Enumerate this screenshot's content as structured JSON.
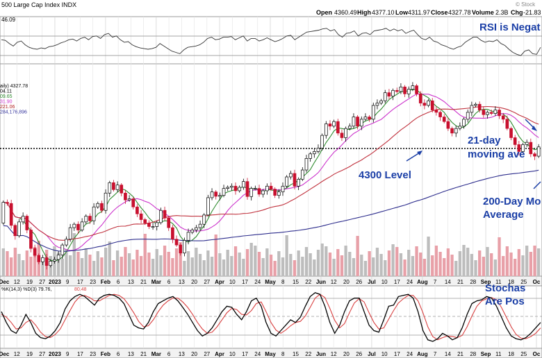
{
  "header": {
    "symbol": "500 Large Cap Index  INDX",
    "open_label": "Open",
    "open": "4360.49",
    "high_label": "High",
    "high": "4377.10",
    "low_label": "Low",
    "low": "4311.97",
    "close_label": "Close",
    "close": "4327.78",
    "volume_label": "Volume",
    "volume": "2.3B",
    "chg_label": "Chg",
    "chg": "-21.83",
    "watermark": "© Stock"
  },
  "rsi_panel": {
    "value": "46.09"
  },
  "price_panel": {
    "legend": [
      "aily) 4327.78",
      "04.11",
      "09.65",
      "31.90",
      "221.06",
      "284,176,896"
    ],
    "legend_colors": [
      "#000000",
      "#000000",
      "#2e8b2e",
      "#cc33cc",
      "#b22222",
      "#3a3aa0"
    ]
  },
  "stoch_panel": {
    "label": "%K(14,3) %D(3) 79.76,",
    "value": "80.48"
  },
  "annotations": {
    "rsi": "RSI is Negat",
    "ma21_line1": "21-day",
    "ma21_line2": "moving ave",
    "level": "4300 Level",
    "ma200_line1": "200-Day Mo",
    "ma200_line2": "Average",
    "stoch_line1": "Stochas",
    "stoch_line2": "Are Pos"
  },
  "colors": {
    "annotation": "#1a3ea6",
    "ma_fast": "#2e8b2e",
    "ma_21": "#cc33cc",
    "ma_50": "#c0303c",
    "ma_200": "#2c2c8c",
    "up_candle": "#000000",
    "down_candle": "#c8102e",
    "stoch_k": "#000000",
    "stoch_d": "#d94040"
  },
  "chart_data": {
    "type": "candlestick",
    "y_ticks_level": 4300,
    "ylim": [
      3760,
      4620
    ],
    "x_labels": [
      "Dec",
      "12",
      "19",
      "27",
      "2023",
      "9",
      "17",
      "23",
      "Feb",
      "6",
      "13",
      "21",
      "Mar",
      "6",
      "13",
      "20",
      "27",
      "Apr",
      "10",
      "17",
      "24",
      "May",
      "8",
      "15",
      "22",
      "Jun",
      "12",
      "20",
      "26",
      "Jul",
      "10",
      "17",
      "24",
      "Aug",
      "7",
      "14",
      "21",
      "28",
      "Sep",
      "11",
      "18",
      "25",
      "Oc"
    ],
    "x_label_bold": [
      "Dec",
      "2023",
      "Feb",
      "Mar",
      "Apr",
      "May",
      "Jun",
      "Jul",
      "Aug",
      "Sep",
      "Oc"
    ],
    "price_series": [
      [
        3990,
        4080
      ],
      [
        4080,
        4075
      ],
      [
        4075,
        3980
      ],
      [
        3980,
        3935
      ],
      [
        3935,
        3995
      ],
      [
        3995,
        4020
      ],
      [
        4020,
        3960
      ],
      [
        3960,
        3880
      ],
      [
        3880,
        3850
      ],
      [
        3850,
        3822
      ],
      [
        3822,
        3840
      ],
      [
        3840,
        3806
      ],
      [
        3806,
        3825
      ],
      [
        3825,
        3832
      ],
      [
        3832,
        3852
      ],
      [
        3852,
        3895
      ],
      [
        3895,
        3920
      ],
      [
        3920,
        3970
      ],
      [
        3970,
        3985
      ],
      [
        3985,
        3960
      ],
      [
        3960,
        3995
      ],
      [
        3995,
        4020
      ],
      [
        4020,
        4000
      ],
      [
        4000,
        4060
      ],
      [
        4060,
        4075
      ],
      [
        4075,
        4045
      ],
      [
        4045,
        4120
      ],
      [
        4120,
        4165
      ],
      [
        4165,
        4135
      ],
      [
        4135,
        4155
      ],
      [
        4155,
        4120
      ],
      [
        4120,
        4090
      ],
      [
        4090,
        4095
      ],
      [
        4095,
        4060
      ],
      [
        4060,
        4030
      ],
      [
        4030,
        4005
      ],
      [
        4005,
        3990
      ],
      [
        3990,
        3975
      ],
      [
        3975,
        3975
      ],
      [
        3975,
        3992
      ],
      [
        3992,
        4045
      ],
      [
        4045,
        4012
      ],
      [
        4012,
        3970
      ],
      [
        3970,
        3920
      ],
      [
        3920,
        3895
      ],
      [
        3895,
        3860
      ],
      [
        3860,
        3915
      ],
      [
        3915,
        3950
      ],
      [
        3950,
        3960
      ],
      [
        3960,
        3970
      ],
      [
        3970,
        3985
      ],
      [
        3985,
        4025
      ],
      [
        4025,
        4100
      ],
      [
        4100,
        4125
      ],
      [
        4125,
        4106
      ],
      [
        4106,
        4110
      ],
      [
        4110,
        4140
      ],
      [
        4140,
        4145
      ],
      [
        4145,
        4150
      ],
      [
        4150,
        4130
      ],
      [
        4130,
        4145
      ],
      [
        4145,
        4170
      ],
      [
        4170,
        4105
      ],
      [
        4105,
        4140
      ],
      [
        4140,
        4140
      ],
      [
        4140,
        4115
      ],
      [
        4115,
        4130
      ],
      [
        4130,
        4150
      ],
      [
        4150,
        4137
      ],
      [
        4137,
        4110
      ],
      [
        4110,
        4125
      ],
      [
        4125,
        4150
      ],
      [
        4150,
        4190
      ],
      [
        4190,
        4205
      ],
      [
        4205,
        4150
      ],
      [
        4150,
        4180
      ],
      [
        4180,
        4220
      ],
      [
        4220,
        4270
      ],
      [
        4270,
        4290
      ],
      [
        4290,
        4300
      ],
      [
        4300,
        4315
      ],
      [
        4315,
        4370
      ],
      [
        4370,
        4420
      ],
      [
        4420,
        4410
      ],
      [
        4410,
        4430
      ],
      [
        4430,
        4380
      ],
      [
        4380,
        4360
      ],
      [
        4360,
        4400
      ],
      [
        4400,
        4410
      ],
      [
        4410,
        4450
      ],
      [
        4450,
        4410
      ],
      [
        4410,
        4440
      ],
      [
        4440,
        4450
      ],
      [
        4450,
        4440
      ],
      [
        4440,
        4500
      ],
      [
        4500,
        4510
      ],
      [
        4510,
        4520
      ],
      [
        4520,
        4555
      ],
      [
        4555,
        4540
      ],
      [
        4540,
        4565
      ],
      [
        4565,
        4560
      ],
      [
        4560,
        4580
      ],
      [
        4580,
        4550
      ],
      [
        4550,
        4570
      ],
      [
        4570,
        4585
      ],
      [
        4585,
        4550
      ],
      [
        4550,
        4510
      ],
      [
        4510,
        4500
      ],
      [
        4500,
        4520
      ],
      [
        4520,
        4480
      ],
      [
        4480,
        4470
      ],
      [
        4470,
        4450
      ],
      [
        4450,
        4430
      ],
      [
        4430,
        4400
      ],
      [
        4400,
        4380
      ],
      [
        4380,
        4400
      ],
      [
        4400,
        4410
      ],
      [
        4410,
        4440
      ],
      [
        4440,
        4470
      ],
      [
        4470,
        4500
      ],
      [
        4500,
        4505
      ],
      [
        4505,
        4480
      ],
      [
        4480,
        4460
      ],
      [
        4460,
        4470
      ],
      [
        4470,
        4465
      ],
      [
        4465,
        4480
      ],
      [
        4480,
        4455
      ],
      [
        4455,
        4440
      ],
      [
        4440,
        4400
      ],
      [
        4400,
        4360
      ],
      [
        4360,
        4330
      ],
      [
        4330,
        4300
      ],
      [
        4300,
        4330
      ],
      [
        4330,
        4340
      ],
      [
        4340,
        4290
      ],
      [
        4290,
        4280
      ],
      [
        4280,
        4320
      ]
    ],
    "stoch_series": [
      [
        60,
        55
      ],
      [
        40,
        50
      ],
      [
        25,
        40
      ],
      [
        20,
        28
      ],
      [
        35,
        30
      ],
      [
        55,
        40
      ],
      [
        40,
        45
      ],
      [
        20,
        35
      ],
      [
        12,
        22
      ],
      [
        10,
        14
      ],
      [
        15,
        12
      ],
      [
        25,
        18
      ],
      [
        40,
        28
      ],
      [
        65,
        45
      ],
      [
        80,
        62
      ],
      [
        88,
        78
      ],
      [
        92,
        88
      ],
      [
        88,
        90
      ],
      [
        80,
        86
      ],
      [
        72,
        80
      ],
      [
        85,
        80
      ],
      [
        90,
        85
      ],
      [
        92,
        90
      ],
      [
        90,
        92
      ],
      [
        85,
        90
      ],
      [
        75,
        84
      ],
      [
        55,
        72
      ],
      [
        35,
        58
      ],
      [
        30,
        42
      ],
      [
        28,
        32
      ],
      [
        40,
        34
      ],
      [
        60,
        45
      ],
      [
        75,
        60
      ],
      [
        80,
        72
      ],
      [
        85,
        80
      ],
      [
        88,
        85
      ],
      [
        80,
        85
      ],
      [
        68,
        78
      ],
      [
        55,
        68
      ],
      [
        40,
        55
      ],
      [
        25,
        40
      ],
      [
        15,
        28
      ],
      [
        20,
        20
      ],
      [
        30,
        22
      ],
      [
        45,
        32
      ],
      [
        60,
        45
      ],
      [
        70,
        58
      ],
      [
        68,
        66
      ],
      [
        55,
        64
      ],
      [
        45,
        55
      ],
      [
        60,
        54
      ],
      [
        80,
        62
      ],
      [
        85,
        75
      ],
      [
        70,
        78
      ],
      [
        40,
        60
      ],
      [
        20,
        40
      ],
      [
        15,
        26
      ],
      [
        25,
        20
      ],
      [
        35,
        26
      ],
      [
        45,
        34
      ],
      [
        40,
        40
      ],
      [
        50,
        42
      ],
      [
        70,
        52
      ],
      [
        88,
        68
      ],
      [
        95,
        85
      ],
      [
        92,
        92
      ],
      [
        70,
        86
      ],
      [
        40,
        66
      ],
      [
        20,
        44
      ],
      [
        35,
        30
      ],
      [
        60,
        38
      ],
      [
        80,
        58
      ],
      [
        85,
        76
      ],
      [
        85,
        84
      ],
      [
        60,
        78
      ],
      [
        35,
        58
      ],
      [
        25,
        40
      ],
      [
        22,
        28
      ],
      [
        45,
        30
      ],
      [
        70,
        46
      ],
      [
        72,
        62
      ],
      [
        88,
        76
      ],
      [
        90,
        84
      ],
      [
        92,
        90
      ],
      [
        85,
        90
      ],
      [
        60,
        80
      ],
      [
        25,
        58
      ],
      [
        8,
        32
      ],
      [
        5,
        14
      ],
      [
        10,
        8
      ],
      [
        20,
        12
      ],
      [
        15,
        15
      ],
      [
        8,
        14
      ],
      [
        12,
        12
      ],
      [
        30,
        16
      ],
      [
        55,
        32
      ],
      [
        75,
        52
      ],
      [
        80,
        70
      ],
      [
        82,
        80
      ],
      [
        88,
        84
      ],
      [
        85,
        86
      ],
      [
        70,
        82
      ],
      [
        50,
        68
      ],
      [
        30,
        50
      ],
      [
        15,
        32
      ],
      [
        10,
        18
      ],
      [
        8,
        11
      ],
      [
        12,
        10
      ],
      [
        20,
        14
      ],
      [
        30,
        20
      ],
      [
        40,
        30
      ]
    ],
    "rsi_series": [
      58,
      57,
      52,
      48,
      54,
      56,
      50,
      46,
      44,
      43,
      45,
      44,
      47,
      48,
      50,
      53,
      55,
      58,
      59,
      56,
      60,
      62,
      58,
      63,
      64,
      60,
      66,
      68,
      62,
      64,
      58,
      54,
      55,
      50,
      47,
      45,
      44,
      43,
      44,
      46,
      52,
      48,
      44,
      40,
      38,
      36,
      42,
      46,
      47,
      48,
      50,
      54,
      60,
      62,
      58,
      59,
      62,
      62,
      63,
      58,
      61,
      64,
      56,
      60,
      60,
      56,
      58,
      61,
      58,
      55,
      57,
      60,
      64,
      65,
      58,
      62,
      66,
      70,
      71,
      72,
      73,
      75,
      76,
      72,
      74,
      66,
      62,
      68,
      69,
      72,
      64,
      68,
      69,
      66,
      72,
      73,
      74,
      76,
      72,
      75,
      72,
      74,
      68,
      71,
      73,
      66,
      60,
      58,
      62,
      56,
      54,
      50,
      48,
      45,
      43,
      46,
      48,
      54,
      58,
      62,
      62,
      57,
      54,
      56,
      55,
      58,
      52,
      49,
      43,
      38,
      35,
      33,
      40,
      42,
      36,
      35,
      46
    ]
  }
}
